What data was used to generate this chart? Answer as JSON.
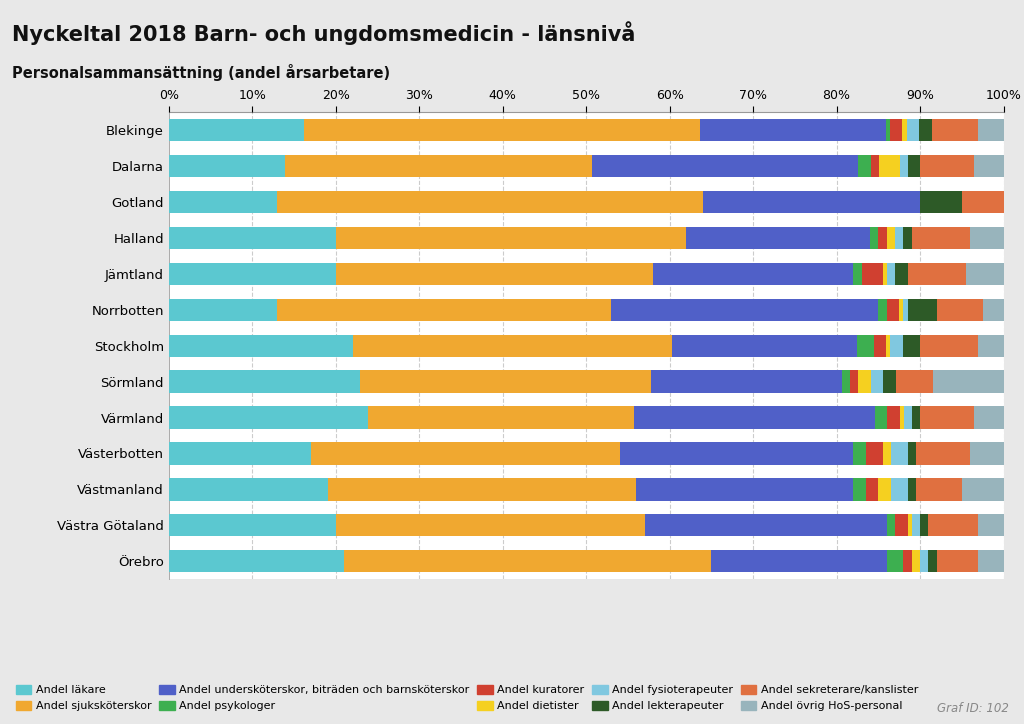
{
  "title": "Nyckeltal 2018 Barn- och ungdomsmedicin - länsnivå",
  "subtitle": "Personalsammansättning (andel årsarbetare)",
  "graf_id": "Graf ID: 102",
  "regions": [
    "Blekinge",
    "Dalarna",
    "Gotland",
    "Halland",
    "Jämtland",
    "Norrbotten",
    "Stockholm",
    "Sörmland",
    "Värmland",
    "Västerbotten",
    "Västmanland",
    "Västra Götaland",
    "Örebro"
  ],
  "categories": [
    "Andel läkare",
    "Andel sjuksköterskor",
    "Andel undersköterskor, biträden och barnsköterskor",
    "Andel psykologer",
    "Andel kuratorer",
    "Andel dietister",
    "Andel fysioterapeuter",
    "Andel lekterapeuter",
    "Andel sekreterare/kanslister",
    "Andel övrig HoS-personal"
  ],
  "colors": [
    "#5BC8D0",
    "#F0A830",
    "#5060C8",
    "#3DAF50",
    "#D04030",
    "#F5D020",
    "#80C8E0",
    "#2D5A27",
    "#E07040",
    "#98B4BC"
  ],
  "data": {
    "Blekinge": [
      16.0,
      47.0,
      22.0,
      0.5,
      1.5,
      0.5,
      1.5,
      1.5,
      5.5,
      3.0
    ],
    "Dalarna": [
      14.0,
      37.0,
      32.0,
      1.5,
      1.0,
      2.5,
      1.0,
      1.5,
      6.5,
      3.5
    ],
    "Gotland": [
      13.0,
      51.0,
      26.0,
      0.0,
      0.0,
      0.0,
      0.0,
      5.0,
      5.0,
      0.0
    ],
    "Halland": [
      20.0,
      42.0,
      22.0,
      1.0,
      1.0,
      1.0,
      1.0,
      1.0,
      7.0,
      4.0
    ],
    "Jämtland": [
      20.0,
      38.0,
      24.0,
      1.0,
      2.5,
      0.5,
      1.0,
      1.5,
      7.0,
      4.5
    ],
    "Norrbotten": [
      13.0,
      40.0,
      32.0,
      1.0,
      1.5,
      0.5,
      0.5,
      3.5,
      5.5,
      2.5
    ],
    "Stockholm": [
      22.0,
      38.0,
      22.0,
      2.0,
      1.5,
      0.5,
      1.5,
      2.0,
      7.0,
      3.0
    ],
    "Sörmland": [
      23.0,
      35.0,
      23.0,
      1.0,
      1.0,
      1.5,
      1.5,
      1.5,
      4.5,
      8.5
    ],
    "Värmland": [
      24.0,
      32.0,
      29.0,
      1.5,
      1.5,
      0.5,
      1.0,
      1.0,
      6.5,
      3.5
    ],
    "Västerbotten": [
      17.0,
      37.0,
      28.0,
      1.5,
      2.0,
      1.0,
      2.0,
      1.0,
      6.5,
      4.0
    ],
    "Västmanland": [
      19.0,
      37.0,
      26.0,
      1.5,
      1.5,
      1.5,
      2.0,
      1.0,
      5.5,
      5.0
    ],
    "Västra Götaland": [
      20.0,
      37.0,
      29.0,
      1.0,
      1.5,
      0.5,
      1.0,
      1.0,
      6.0,
      3.0
    ],
    "Örebro": [
      21.0,
      44.0,
      21.0,
      2.0,
      1.0,
      1.0,
      1.0,
      1.0,
      5.0,
      3.0
    ]
  },
  "background_color": "#e8e8e8",
  "plot_background": "#ffffff",
  "title_bg_color": "#e0e0e0",
  "bar_height": 0.62
}
